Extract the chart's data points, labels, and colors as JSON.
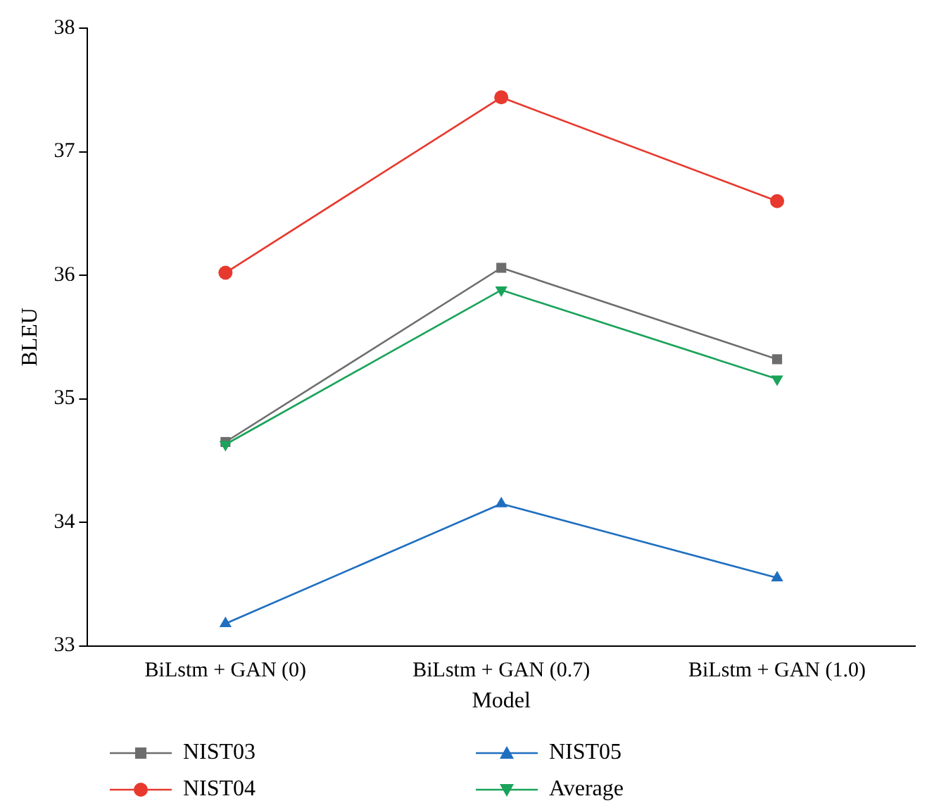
{
  "chart_data": {
    "type": "line",
    "xlabel": "Model",
    "ylabel": "BLEU",
    "categories": [
      "BiLstm + GAN (0)",
      "BiLstm + GAN (0.7)",
      "BiLstm + GAN (1.0)"
    ],
    "ylim": [
      33,
      38
    ],
    "yticks": [
      33,
      34,
      35,
      36,
      37,
      38
    ],
    "grid": false,
    "legend": "bottom",
    "series": [
      {
        "name": "NIST03",
        "color": "#6d6d6d",
        "marker": "square",
        "values": [
          34.65,
          36.06,
          35.32
        ]
      },
      {
        "name": "NIST04",
        "color": "#e8392e",
        "marker": "circle",
        "values": [
          36.02,
          37.44,
          36.6
        ]
      },
      {
        "name": "NIST05",
        "color": "#1f6fc0",
        "marker": "triangle",
        "values": [
          33.18,
          34.15,
          33.55
        ]
      },
      {
        "name": "Average",
        "color": "#1aa35a",
        "marker": "triangle-down",
        "values": [
          34.63,
          35.88,
          35.16
        ]
      }
    ]
  }
}
